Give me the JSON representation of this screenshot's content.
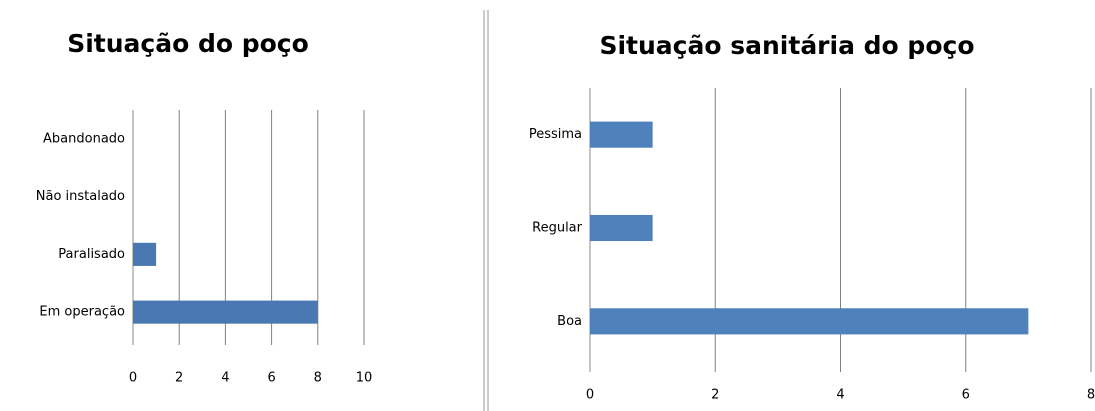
{
  "chart_data": [
    {
      "type": "bar",
      "orientation": "horizontal",
      "title": "Situação do poço",
      "categories": [
        "Abandonado",
        "Não instalado",
        "Paralisado",
        "Em operação"
      ],
      "values": [
        0,
        0,
        1,
        8
      ],
      "color": "#4a78b3",
      "xlim": [
        0,
        10
      ],
      "xticks": [
        0,
        2,
        4,
        6,
        8,
        10
      ],
      "grid": true
    },
    {
      "type": "bar",
      "orientation": "horizontal",
      "title": "Situação sanitária do poço",
      "categories": [
        "Pessima",
        "Regular",
        "Boa"
      ],
      "values": [
        1,
        1,
        7
      ],
      "color": "#4f81bd",
      "xlim": [
        0,
        8
      ],
      "xticks": [
        0,
        2,
        4,
        6,
        8
      ],
      "grid": true
    }
  ]
}
